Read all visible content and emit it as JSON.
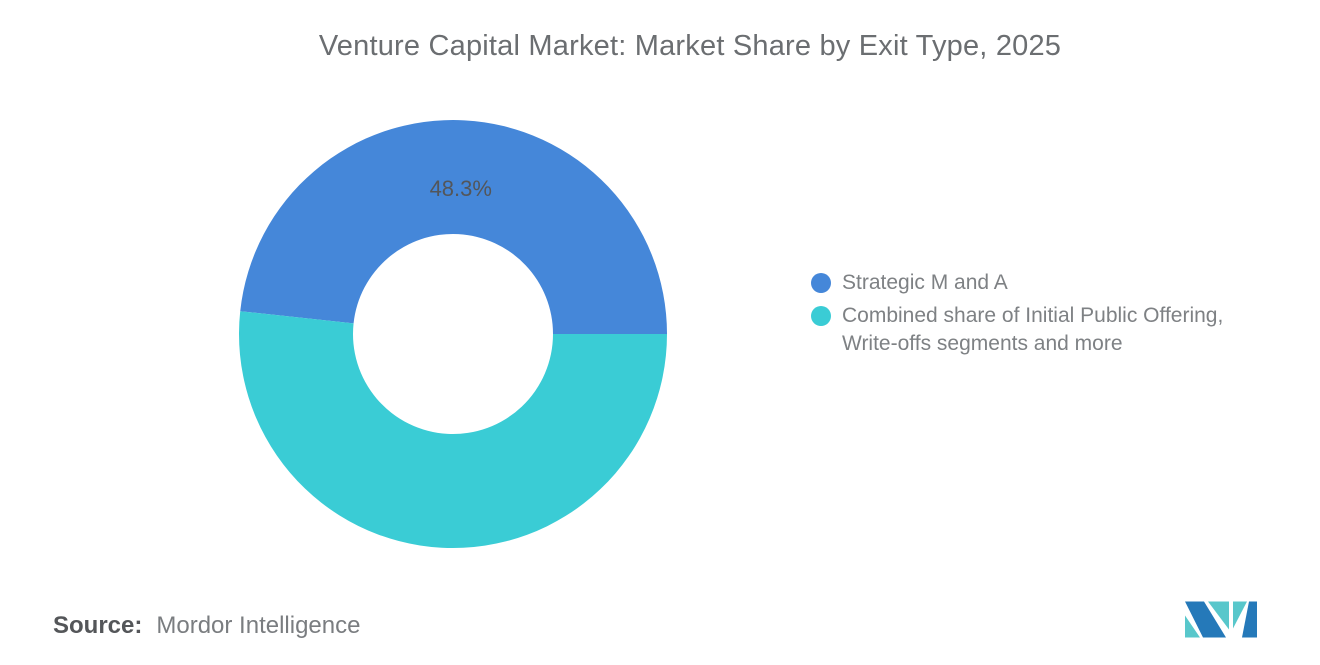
{
  "chart_data": {
    "type": "pie",
    "subtype": "donut",
    "title": "Venture Capital Market: Market Share by Exit Type, 2025",
    "series": [
      {
        "name": "Strategic M and A",
        "value": 48.3,
        "color": "#4587D9",
        "label": "48.3%"
      },
      {
        "name": "Combined share of Initial Public Offering, Write-offs segments and more",
        "value": 51.7,
        "color": "#3ACCD5",
        "label": null
      }
    ],
    "values_unit": "%",
    "start_angle_deg": 0,
    "sweep": "counterclockwise",
    "inner_radius_ratio": 0.465,
    "legend_position": "right",
    "slice_label_color": "#53565a",
    "background": "#ffffff"
  },
  "source": {
    "label": "Source:",
    "value": "Mordor Intelligence"
  },
  "logo": {
    "name": "mordor-intelligence-logo",
    "blue": "#2579b9",
    "teal": "#58c7cb"
  }
}
